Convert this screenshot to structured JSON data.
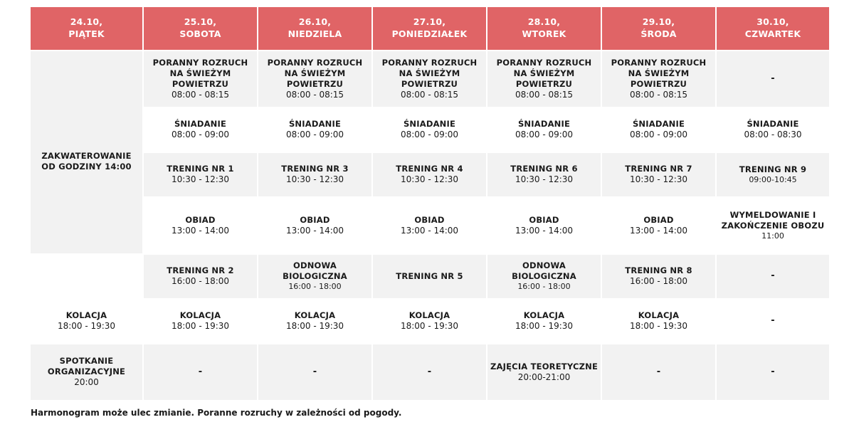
{
  "colors": {
    "header_bg": "#e06466",
    "header_text": "#ffffff",
    "row_shade": "#f2f2f2"
  },
  "header": [
    {
      "date": "24.10,",
      "day": "PIĄTEK"
    },
    {
      "date": "25.10,",
      "day": "SOBOTA"
    },
    {
      "date": "26.10,",
      "day": "NIEDZIELA"
    },
    {
      "date": "27.10,",
      "day": "PONIEDZIAŁEK"
    },
    {
      "date": "28.10,",
      "day": "WTOREK"
    },
    {
      "date": "29.10,",
      "day": "ŚRODA"
    },
    {
      "date": "30.10,",
      "day": "CZWARTEK"
    }
  ],
  "friday": {
    "checkin": "ZAKWATEROWANIE OD GODZINY 14:00",
    "dinner": {
      "title": "KOLACJA",
      "time": "18:00 - 19:30"
    },
    "meeting": {
      "title": "SPOTKANIE ORGANIZACYJNE",
      "time": "20:00"
    }
  },
  "rows": [
    [
      {
        "title": "PORANNY ROZRUCH NA ŚWIEŻYM POWIETRZU",
        "time": "08:00 - 08:15"
      },
      {
        "title": "PORANNY ROZRUCH NA ŚWIEŻYM POWIETRZU",
        "time": "08:00 - 08:15"
      },
      {
        "title": "PORANNY ROZRUCH NA ŚWIEŻYM POWIETRZU",
        "time": "08:00 - 08:15"
      },
      {
        "title": "PORANNY ROZRUCH NA ŚWIEŻYM POWIETRZU",
        "time": "08:00 - 08:15"
      },
      {
        "title": "PORANNY ROZRUCH NA ŚWIEŻYM POWIETRZU",
        "time": "08:00 - 08:15"
      },
      {
        "title": "-",
        "time": ""
      }
    ],
    [
      {
        "title": "ŚNIADANIE",
        "time": "08:00 - 09:00"
      },
      {
        "title": "ŚNIADANIE",
        "time": "08:00 - 09:00"
      },
      {
        "title": "ŚNIADANIE",
        "time": "08:00 - 09:00"
      },
      {
        "title": "ŚNIADANIE",
        "time": "08:00 - 09:00"
      },
      {
        "title": "ŚNIADANIE",
        "time": "08:00 - 09:00"
      },
      {
        "title": "ŚNIADANIE",
        "time": "08:00 - 08:30"
      }
    ],
    [
      {
        "title": "TRENING NR 1",
        "time": "10:30 - 12:30"
      },
      {
        "title": "TRENING NR 3",
        "time": "10:30 - 12:30"
      },
      {
        "title": "TRENING NR 4",
        "time": "10:30 - 12:30"
      },
      {
        "title": "TRENING NR 6",
        "time": "10:30 - 12:30"
      },
      {
        "title": "TRENING NR 7",
        "time": "10:30 - 12:30"
      },
      {
        "title": "TRENING NR 9",
        "time": "09:00-10:45"
      }
    ],
    [
      {
        "title": "OBIAD",
        "time": "13:00 - 14:00"
      },
      {
        "title": "OBIAD",
        "time": "13:00 - 14:00"
      },
      {
        "title": "OBIAD",
        "time": "13:00 - 14:00"
      },
      {
        "title": "OBIAD",
        "time": "13:00 - 14:00"
      },
      {
        "title": "OBIAD",
        "time": "13:00 - 14:00"
      },
      {
        "title": "WYMELDOWANIE I ZAKOŃCZENIE OBOZU",
        "time": "11:00"
      }
    ],
    [
      {
        "title": "TRENING NR 2",
        "time": "16:00 - 18:00"
      },
      {
        "title": "ODNOWA BIOLOGICZNA",
        "time": "16:00 - 18:00"
      },
      {
        "title": "TRENING NR 5",
        "time": ""
      },
      {
        "title": "ODNOWA BIOLOGICZNA",
        "time": "16:00 - 18:00"
      },
      {
        "title": "TRENING NR 8",
        "time": "16:00 - 18:00"
      },
      {
        "title": "-",
        "time": ""
      }
    ],
    [
      {
        "title": "KOLACJA",
        "time": "18:00 - 19:30"
      },
      {
        "title": "KOLACJA",
        "time": "18:00 - 19:30"
      },
      {
        "title": "KOLACJA",
        "time": "18:00 - 19:30"
      },
      {
        "title": "KOLACJA",
        "time": "18:00 - 19:30"
      },
      {
        "title": "KOLACJA",
        "time": "18:00 - 19:30"
      },
      {
        "title": "-",
        "time": ""
      }
    ],
    [
      {
        "title": "-",
        "time": ""
      },
      {
        "title": "-",
        "time": ""
      },
      {
        "title": "-",
        "time": ""
      },
      {
        "title": "ZAJĘCIA TEORETYCZNE",
        "time": "20:00-21:00"
      },
      {
        "title": "-",
        "time": ""
      },
      {
        "title": "-",
        "time": ""
      }
    ]
  ],
  "footnote": "Harmonogram może ulec zmianie. Poranne rozruchy w zależności od pogody."
}
